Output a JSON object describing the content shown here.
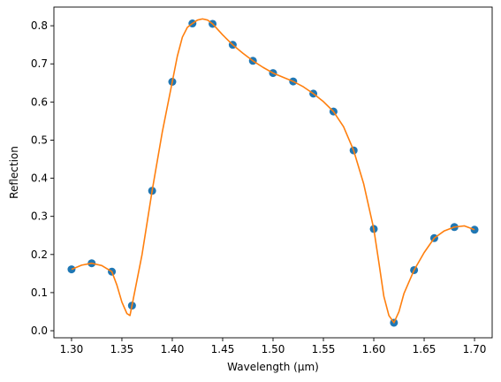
{
  "chart_data": {
    "type": "scatter",
    "xlabel": "Wavelength (μm)",
    "ylabel": "Reflection",
    "xlim": [
      1.2825,
      1.7175
    ],
    "ylim": [
      -0.0185,
      0.849
    ],
    "grid": false,
    "x_ticks": [
      "1.30",
      "1.35",
      "1.40",
      "1.45",
      "1.50",
      "1.55",
      "1.60",
      "1.65",
      "1.70"
    ],
    "y_ticks": [
      "0.0",
      "0.1",
      "0.2",
      "0.3",
      "0.4",
      "0.5",
      "0.6",
      "0.7",
      "0.8"
    ],
    "series": [
      {
        "kind": "points",
        "color": "#1f77b4",
        "x": [
          1.3,
          1.32,
          1.34,
          1.36,
          1.38,
          1.4,
          1.42,
          1.44,
          1.46,
          1.48,
          1.5,
          1.52,
          1.54,
          1.56,
          1.58,
          1.6,
          1.62,
          1.64,
          1.66,
          1.68,
          1.7
        ],
        "y": [
          0.161,
          0.177,
          0.155,
          0.066,
          0.367,
          0.653,
          0.806,
          0.805,
          0.75,
          0.708,
          0.676,
          0.654,
          0.622,
          0.575,
          0.473,
          0.267,
          0.021,
          0.159,
          0.243,
          0.272,
          0.265
        ]
      },
      {
        "kind": "curve",
        "color": "#ff7f0e",
        "x": [
          1.3,
          1.31,
          1.32,
          1.33,
          1.34,
          1.345,
          1.35,
          1.355,
          1.358,
          1.36,
          1.37,
          1.38,
          1.39,
          1.4,
          1.405,
          1.41,
          1.415,
          1.42,
          1.425,
          1.43,
          1.435,
          1.44,
          1.45,
          1.46,
          1.47,
          1.48,
          1.49,
          1.5,
          1.51,
          1.52,
          1.53,
          1.54,
          1.55,
          1.56,
          1.57,
          1.58,
          1.59,
          1.6,
          1.605,
          1.61,
          1.615,
          1.62,
          1.625,
          1.63,
          1.64,
          1.65,
          1.66,
          1.67,
          1.68,
          1.69,
          1.7
        ],
        "y": [
          0.161,
          0.172,
          0.177,
          0.171,
          0.155,
          0.12,
          0.075,
          0.045,
          0.04,
          0.066,
          0.2,
          0.367,
          0.52,
          0.653,
          0.72,
          0.77,
          0.796,
          0.806,
          0.815,
          0.818,
          0.815,
          0.805,
          0.776,
          0.75,
          0.728,
          0.708,
          0.691,
          0.676,
          0.665,
          0.654,
          0.64,
          0.622,
          0.601,
          0.575,
          0.535,
          0.473,
          0.385,
          0.267,
          0.18,
          0.09,
          0.04,
          0.021,
          0.05,
          0.098,
          0.159,
          0.205,
          0.243,
          0.262,
          0.272,
          0.275,
          0.265
        ]
      }
    ]
  }
}
